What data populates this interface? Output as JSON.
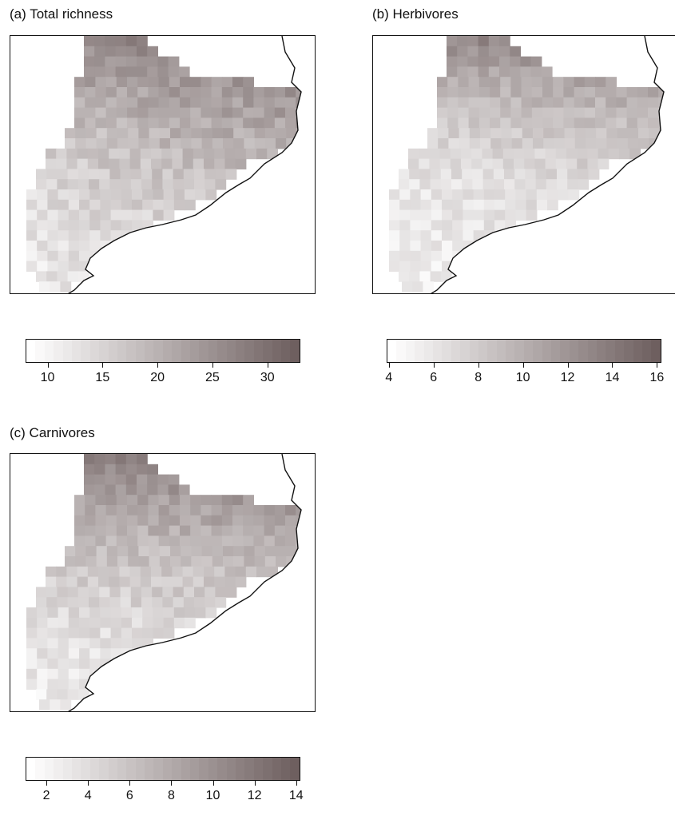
{
  "panels": [
    {
      "id": "a",
      "title": "(a) Total richness",
      "legend": {
        "min": 8,
        "max": 33,
        "ticks": [
          "10",
          "15",
          "20",
          "25",
          "30"
        ],
        "tick_values": [
          10,
          15,
          20,
          25,
          30
        ]
      },
      "seed": 11
    },
    {
      "id": "b",
      "title": "(b) Herbivores",
      "legend": {
        "min": 3.9,
        "max": 16.2,
        "ticks": [
          "4",
          "6",
          "8",
          "10",
          "12",
          "14",
          "16"
        ],
        "tick_values": [
          4,
          6,
          8,
          10,
          12,
          14,
          16
        ]
      },
      "seed": 23
    },
    {
      "id": "c",
      "title": "(c) Carnivores",
      "legend": {
        "min": 1,
        "max": 14.2,
        "ticks": [
          "2",
          "4",
          "6",
          "8",
          "10",
          "12",
          "14"
        ],
        "tick_values": [
          2,
          4,
          6,
          8,
          10,
          12,
          14
        ]
      },
      "seed": 37
    }
  ],
  "colors": {
    "low": "#ffffff",
    "high": "#6e5f5f",
    "coast": "#111111"
  }
}
